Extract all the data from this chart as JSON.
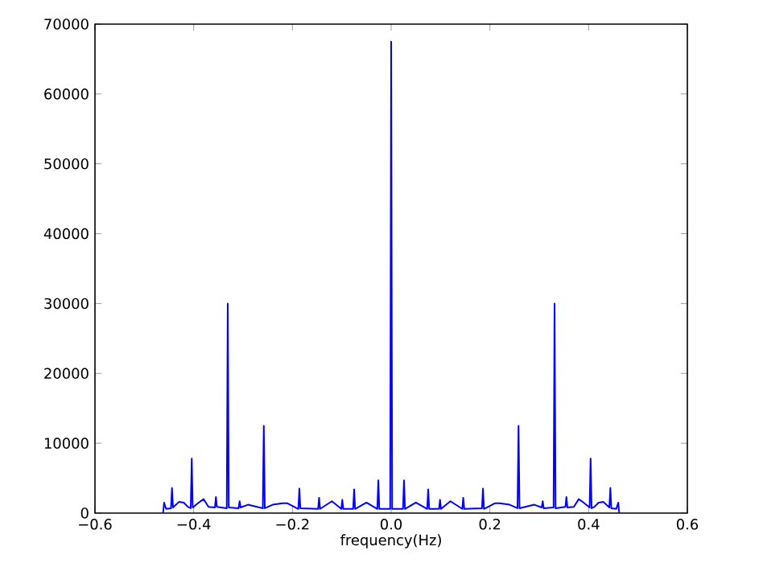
{
  "chart_data": {
    "type": "line",
    "xlabel": "frequency(Hz)",
    "xlim": [
      -0.6,
      0.6
    ],
    "ylim": [
      0,
      70000
    ],
    "xticks": [
      {
        "value": -0.6,
        "label": "−0.6"
      },
      {
        "value": -0.4,
        "label": "−0.4"
      },
      {
        "value": -0.2,
        "label": "−0.2"
      },
      {
        "value": 0,
        "label": "0.0"
      },
      {
        "value": 0.2,
        "label": "0.2"
      },
      {
        "value": 0.4,
        "label": "0.4"
      },
      {
        "value": 0.6,
        "label": "0.6"
      }
    ],
    "yticks": [
      0,
      10000,
      20000,
      30000,
      40000,
      50000,
      60000,
      70000
    ],
    "grid": false,
    "marker": "none",
    "line_style": "solid",
    "series": [
      {
        "color": "#0000ff",
        "x": [
          -0.462,
          -0.46,
          -0.456,
          -0.446,
          -0.444,
          -0.442,
          -0.43,
          -0.42,
          -0.412,
          -0.406,
          -0.404,
          -0.402,
          -0.39,
          -0.38,
          -0.37,
          -0.357,
          -0.355,
          -0.353,
          -0.333,
          -0.331,
          -0.329,
          -0.309,
          -0.307,
          -0.305,
          -0.29,
          -0.26,
          -0.258,
          -0.256,
          -0.24,
          -0.22,
          -0.21,
          -0.188,
          -0.186,
          -0.184,
          -0.148,
          -0.146,
          -0.144,
          -0.12,
          -0.101,
          -0.099,
          -0.097,
          -0.077,
          -0.075,
          -0.073,
          -0.05,
          -0.028,
          -0.026,
          -0.024,
          -0.002,
          0,
          0.002,
          0.024,
          0.026,
          0.028,
          0.05,
          0.073,
          0.075,
          0.077,
          0.097,
          0.099,
          0.101,
          0.12,
          0.144,
          0.146,
          0.148,
          0.184,
          0.186,
          0.188,
          0.21,
          0.22,
          0.24,
          0.256,
          0.258,
          0.26,
          0.29,
          0.305,
          0.307,
          0.309,
          0.329,
          0.331,
          0.333,
          0.353,
          0.355,
          0.357,
          0.37,
          0.38,
          0.39,
          0.402,
          0.404,
          0.406,
          0.412,
          0.42,
          0.43,
          0.442,
          0.444,
          0.446,
          0.456,
          0.46,
          0.462
        ],
        "values": [
          0,
          1500,
          600,
          700,
          3600,
          800,
          1600,
          1500,
          900,
          700,
          7800,
          800,
          1500,
          2000,
          900,
          800,
          2300,
          900,
          700,
          30000,
          800,
          700,
          1700,
          800,
          1200,
          700,
          12500,
          700,
          1200,
          1400,
          1400,
          600,
          3500,
          700,
          600,
          2200,
          600,
          1700,
          600,
          1900,
          600,
          600,
          3400,
          600,
          1500,
          600,
          4700,
          600,
          600,
          67500,
          600,
          600,
          4700,
          600,
          1500,
          600,
          3400,
          600,
          600,
          1900,
          600,
          1700,
          600,
          2200,
          600,
          700,
          3500,
          600,
          1400,
          1400,
          1200,
          700,
          12500,
          700,
          1200,
          800,
          1700,
          700,
          800,
          30000,
          700,
          900,
          2300,
          800,
          900,
          2000,
          1500,
          800,
          7800,
          700,
          900,
          1500,
          1600,
          800,
          3600,
          700,
          600,
          1500,
          0
        ]
      }
    ]
  }
}
